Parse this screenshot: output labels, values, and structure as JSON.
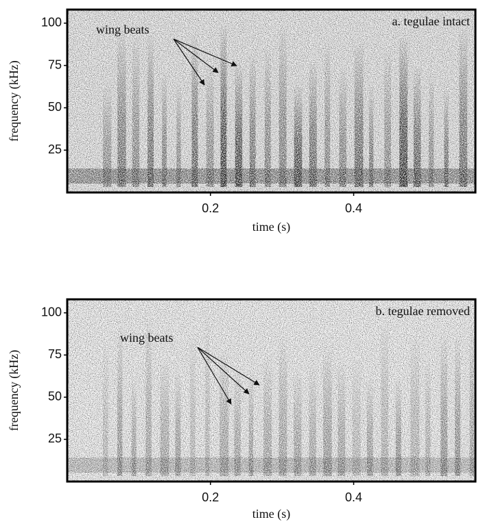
{
  "chart_data": [
    {
      "type": "spectrogram",
      "title": "a. tegulae intact",
      "annotation": "wing beats",
      "xlabel": "time (s)",
      "ylabel": "frequency (kHz)",
      "xlim": [
        0,
        0.57
      ],
      "ylim": [
        0,
        108
      ],
      "xticks": [
        0.2,
        0.4
      ],
      "yticks": [
        25,
        50,
        75,
        100
      ]
    },
    {
      "type": "spectrogram",
      "title": "b. tegulae removed",
      "annotation": "wing beats",
      "xlabel": "time (s)",
      "ylabel": "frequency (kHz)",
      "xlim": [
        0,
        0.57
      ],
      "ylim": [
        0,
        108
      ],
      "xticks": [
        0.2,
        0.4
      ],
      "yticks": [
        25,
        50,
        75,
        100
      ]
    }
  ]
}
